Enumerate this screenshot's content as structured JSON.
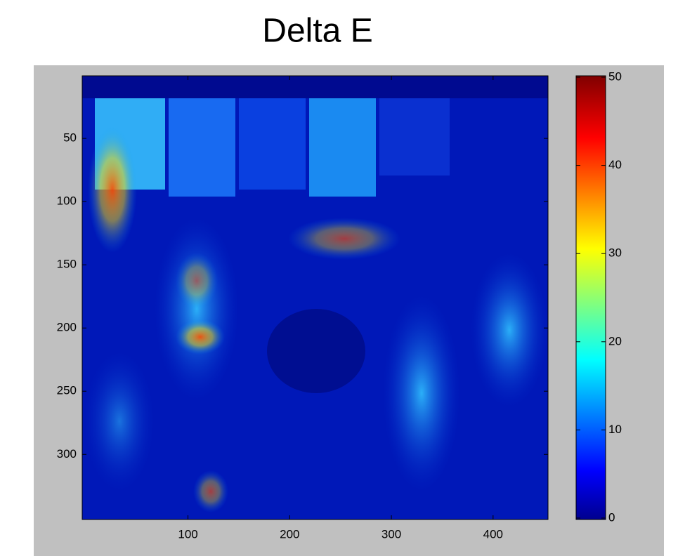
{
  "chart_data": {
    "type": "heatmap",
    "title": "Delta E",
    "xlim": [
      -4,
      454
    ],
    "xticks": [
      100,
      200,
      300,
      400
    ],
    "ylim": [
      0.5,
      351.5
    ],
    "yticks": [
      50,
      100,
      150,
      200,
      250,
      300
    ],
    "y_reversed": true,
    "colormap": "jet",
    "colorbar": {
      "clim": [
        0,
        50
      ],
      "ticks": [
        0,
        10,
        20,
        30,
        40,
        50
      ]
    }
  }
}
